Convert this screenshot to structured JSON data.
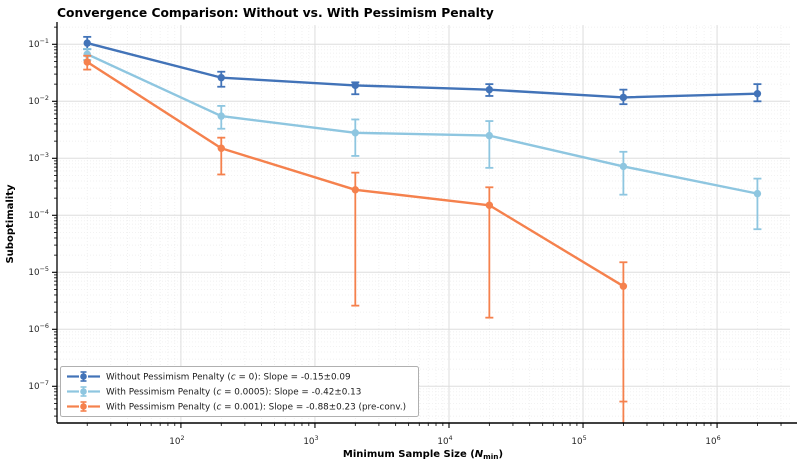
{
  "title": "Convergence Comparison: Without vs. With Pessimism Penalty",
  "axes": {
    "ylabel": "Suboptimality",
    "xlabel_prefix": "Minimum Sample Size (",
    "xlabel_var": "N",
    "xlabel_sub": "min",
    "xlabel_suffix": ")"
  },
  "colors": {
    "spine": "#000000",
    "major_grid": "#dddddd",
    "minor_grid": "#ebebeb",
    "tick_label": "#262626",
    "legend_border": "#b0b0b0",
    "legend_bg": "#ffffff"
  },
  "chart_data": {
    "type": "line",
    "title": "Convergence Comparison: Without vs. With Pessimism Penalty",
    "xlabel": "Minimum Sample Size (N_min)",
    "ylabel": "Suboptimality",
    "x_scale": "log",
    "y_scale": "log",
    "xlim": [
      11.9,
      3500000
    ],
    "ylim": [
      2.27e-08,
      0.218
    ],
    "x_major_tick_exponents": [
      2,
      3,
      4,
      5,
      6
    ],
    "y_major_tick_exponents": [
      -1,
      -2,
      -3,
      -4,
      -5,
      -6,
      -7
    ],
    "grid": "major solid, minor dotted, both axes",
    "legend_position": "lower left",
    "marker": "circle",
    "error_bars": true,
    "series": [
      {
        "name": "Without Pessimism Penalty (c = 0): Slope = -0.15±0.09",
        "label_parts": [
          "Without Pessimism Penalty (",
          "c",
          " = 0): Slope = -0.15±0.09"
        ],
        "color": "#4273b8",
        "x": [
          20,
          200,
          2000,
          20000,
          200000,
          2000000
        ],
        "y": [
          0.105,
          0.026,
          0.019,
          0.016,
          0.0117,
          0.0136
        ],
        "y_lower": [
          0.082,
          0.018,
          0.0133,
          0.0124,
          0.0089,
          0.01
        ],
        "y_upper": [
          0.135,
          0.033,
          0.0215,
          0.02,
          0.016,
          0.02
        ],
        "clip_lower_to_axis": [
          false,
          false,
          false,
          false,
          false,
          false
        ]
      },
      {
        "name": "With Pessimism Penalty (c = 0.0005): Slope = -0.42±0.13",
        "label_parts": [
          "With Pessimism Penalty (",
          "c",
          " = 0.0005): Slope = -0.42±0.13"
        ],
        "color": "#8ec6e0",
        "x": [
          20,
          200,
          2000,
          20000,
          200000,
          2000000
        ],
        "y": [
          0.067,
          0.0055,
          0.0028,
          0.0025,
          0.00072,
          0.00024
        ],
        "y_lower": [
          0.053,
          0.0033,
          0.0011,
          0.00068,
          0.00023,
          5.7e-05
        ],
        "y_upper": [
          0.083,
          0.0083,
          0.0048,
          0.0045,
          0.0013,
          0.00044
        ],
        "clip_lower_to_axis": [
          false,
          false,
          false,
          false,
          false,
          false
        ]
      },
      {
        "name": "With Pessimism Penalty (c = 0.001): Slope = -0.88±0.23 (pre-conv.)",
        "label_parts": [
          "With Pessimism Penalty (",
          "c",
          " = 0.001): Slope = -0.88±0.23 (pre-conv.)"
        ],
        "color": "#f5814d",
        "x": [
          20,
          200,
          2000,
          20000,
          200000
        ],
        "y": [
          0.049,
          0.0015,
          0.00028,
          0.00015,
          5.7e-06
        ],
        "y_lower": [
          0.036,
          0.00052,
          2.6e-06,
          1.6e-06,
          5.4e-08
        ],
        "y_upper": [
          0.063,
          0.0023,
          0.00056,
          0.00031,
          1.5e-05
        ],
        "clip_lower_to_axis": [
          false,
          false,
          false,
          false,
          true
        ]
      }
    ]
  }
}
